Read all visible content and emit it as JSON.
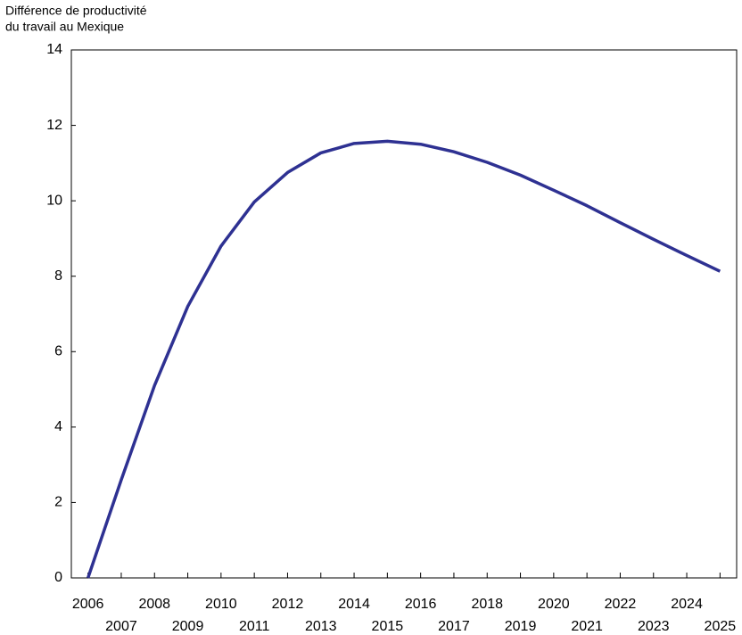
{
  "chart_data": {
    "type": "line",
    "ylabel_lines": [
      "Différence de productivité",
      "du travail au Mexique"
    ],
    "categories": [
      "2006",
      "2007",
      "2008",
      "2009",
      "2010",
      "2011",
      "2012",
      "2013",
      "2014",
      "2015",
      "2016",
      "2017",
      "2018",
      "2019",
      "2020",
      "2021",
      "2022",
      "2023",
      "2024",
      "2025"
    ],
    "series": [
      {
        "name": "Mexique",
        "color": "#2e3192",
        "values": [
          0,
          2.6,
          5.1,
          7.2,
          8.8,
          9.97,
          10.75,
          11.27,
          11.52,
          11.58,
          11.5,
          11.3,
          11.02,
          10.68,
          10.28,
          9.87,
          9.42,
          8.98,
          8.55,
          8.13
        ]
      }
    ],
    "ylim": [
      0,
      14
    ],
    "yticks": [
      0,
      2,
      4,
      6,
      8,
      10,
      12,
      14
    ],
    "grid": false
  }
}
